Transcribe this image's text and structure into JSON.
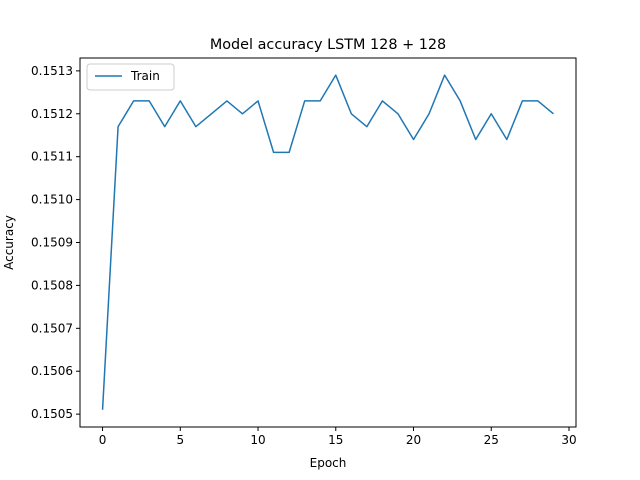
{
  "chart_data": {
    "type": "line",
    "title": "Model accuracy LSTM 128 + 128",
    "xlabel": "Epoch",
    "ylabel": "Accuracy",
    "xlim": [
      -1.45,
      30.45
    ],
    "ylim": [
      0.15047,
      0.15133
    ],
    "xticks": [
      0,
      5,
      10,
      15,
      20,
      25,
      30
    ],
    "xtick_labels": [
      "0",
      "5",
      "10",
      "15",
      "20",
      "25",
      "30"
    ],
    "yticks": [
      0.1505,
      0.1506,
      0.1507,
      0.1508,
      0.1509,
      0.151,
      0.1511,
      0.1512,
      0.1513
    ],
    "ytick_labels": [
      "0.1505",
      "0.1506",
      "0.1507",
      "0.1508",
      "0.1509",
      "0.1510",
      "0.1511",
      "0.1512",
      "0.1513"
    ],
    "grid": false,
    "legend_position": "upper-left",
    "x": [
      0,
      1,
      2,
      3,
      4,
      5,
      6,
      7,
      8,
      9,
      10,
      11,
      12,
      13,
      14,
      15,
      16,
      17,
      18,
      19,
      20,
      21,
      22,
      23,
      24,
      25,
      26,
      27,
      28,
      29
    ],
    "series": [
      {
        "name": "Train",
        "color": "#1f77b4",
        "values": [
          0.15051,
          0.15117,
          0.15123,
          0.15123,
          0.15117,
          0.15123,
          0.15117,
          0.1512,
          0.15123,
          0.1512,
          0.15123,
          0.15111,
          0.15111,
          0.15123,
          0.15123,
          0.15129,
          0.1512,
          0.15117,
          0.15123,
          0.1512,
          0.15114,
          0.1512,
          0.15129,
          0.15123,
          0.15114,
          0.1512,
          0.15114,
          0.15123,
          0.15123,
          0.1512
        ]
      }
    ]
  }
}
